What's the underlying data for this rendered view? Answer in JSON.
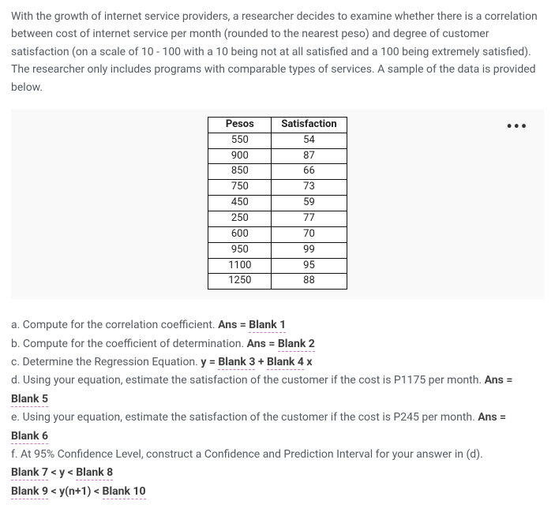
{
  "intro": "With the growth of internet service providers, a researcher decides to examine whether there is a correlation between cost of internet service per month (rounded to the nearest peso) and degree of customer satisfaction (on a scale of 10 - 100 with a 10 being not at all satisfied and a 100 being extremely satisfied). The researcher only includes programs with comparable types of services. A sample of the data is provided below.",
  "table": {
    "headers": [
      "Pesos",
      "Satisfaction"
    ],
    "rows": [
      [
        "550",
        "54"
      ],
      [
        "900",
        "87"
      ],
      [
        "850",
        "66"
      ],
      [
        "750",
        "73"
      ],
      [
        "450",
        "59"
      ],
      [
        "250",
        "77"
      ],
      [
        "600",
        "70"
      ],
      [
        "950",
        "99"
      ],
      [
        "1100",
        "95"
      ],
      [
        "1250",
        "88"
      ]
    ]
  },
  "more_icon_glyph": "•••",
  "q": {
    "a_text": "a. Compute for the correlation coefficient. ",
    "b_text": "b. Compute for the coefficient of determination. ",
    "c_text": "c. Determine the Regression Equation. ",
    "c_eqn_pre": "y = ",
    "c_eqn_mid": " + ",
    "c_eqn_post": " x",
    "d_text": "d. Using your equation, estimate the satisfaction of the customer if the cost is P1175 per month. ",
    "e_text": "e. Using your equation, estimate the satisfaction of the customer if the cost is P245 per month. ",
    "f_text": "f. At 95% Confidence Level, construct a Confidence and Prediction Interval for your answer in (d).",
    "ans_eq": "Ans = ",
    "ans_label": "Ans =",
    "blank1": "Blank 1",
    "blank2": "Blank 2",
    "blank3": "Blank 3",
    "blank4": "Blank 4",
    "blank5": "Blank 5",
    "blank6": "Blank 6",
    "blank7": "Blank 7",
    "lt_y_lt": " < y < ",
    "blank8": "Blank 8",
    "blank9": "Blank 9",
    "lt_yn_lt": " < y(n+1) < ",
    "blank10": "Blank 10"
  }
}
